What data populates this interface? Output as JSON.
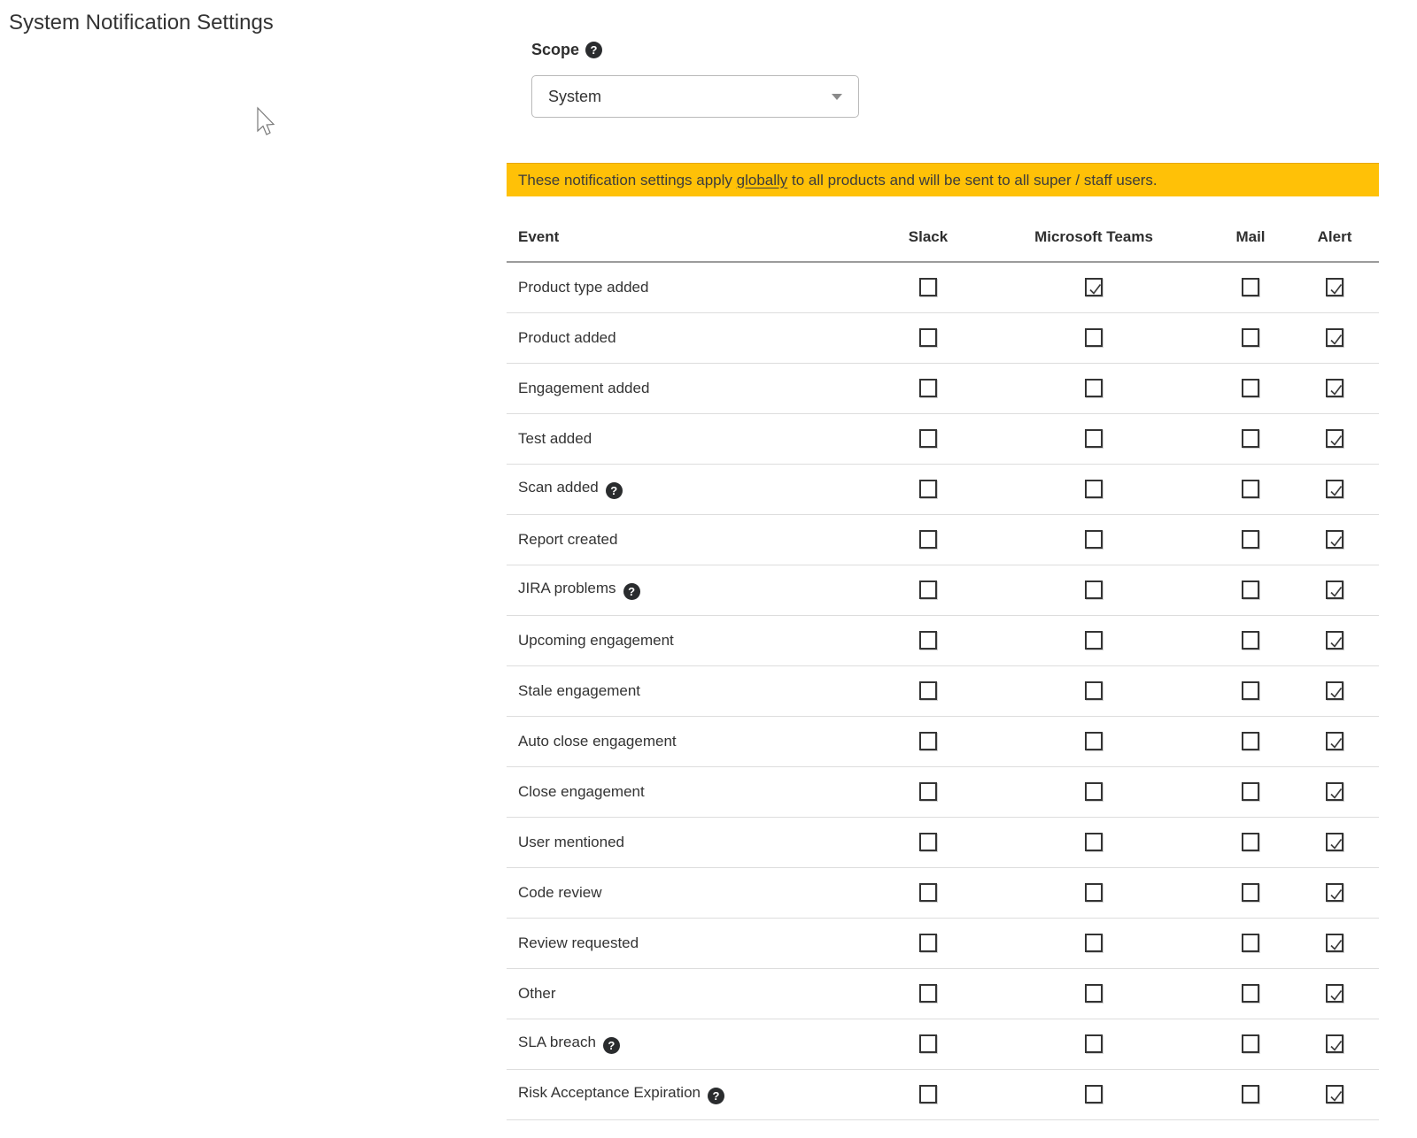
{
  "page": {
    "title": "System Notification Settings"
  },
  "scope": {
    "label": "Scope",
    "help_icon": "question-circle",
    "selected": "System"
  },
  "banner": {
    "text_before": "These notification settings apply ",
    "underlined": "globally",
    "text_after": " to all products and will be sent to all super / staff users.",
    "background_color": "#ffc107"
  },
  "table": {
    "columns": [
      "Event",
      "Slack",
      "Microsoft Teams",
      "Mail",
      "Alert"
    ],
    "rows": [
      {
        "event": "Product type added",
        "help": false,
        "slack": false,
        "msteams": true,
        "mail": false,
        "alert": true
      },
      {
        "event": "Product added",
        "help": false,
        "slack": false,
        "msteams": false,
        "mail": false,
        "alert": true
      },
      {
        "event": "Engagement added",
        "help": false,
        "slack": false,
        "msteams": false,
        "mail": false,
        "alert": true
      },
      {
        "event": "Test added",
        "help": false,
        "slack": false,
        "msteams": false,
        "mail": false,
        "alert": true
      },
      {
        "event": "Scan added",
        "help": true,
        "slack": false,
        "msteams": false,
        "mail": false,
        "alert": true
      },
      {
        "event": "Report created",
        "help": false,
        "slack": false,
        "msteams": false,
        "mail": false,
        "alert": true
      },
      {
        "event": "JIRA problems",
        "help": true,
        "slack": false,
        "msteams": false,
        "mail": false,
        "alert": true
      },
      {
        "event": "Upcoming engagement",
        "help": false,
        "slack": false,
        "msteams": false,
        "mail": false,
        "alert": true
      },
      {
        "event": "Stale engagement",
        "help": false,
        "slack": false,
        "msteams": false,
        "mail": false,
        "alert": true
      },
      {
        "event": "Auto close engagement",
        "help": false,
        "slack": false,
        "msteams": false,
        "mail": false,
        "alert": true
      },
      {
        "event": "Close engagement",
        "help": false,
        "slack": false,
        "msteams": false,
        "mail": false,
        "alert": true
      },
      {
        "event": "User mentioned",
        "help": false,
        "slack": false,
        "msteams": false,
        "mail": false,
        "alert": true
      },
      {
        "event": "Code review",
        "help": false,
        "slack": false,
        "msteams": false,
        "mail": false,
        "alert": true
      },
      {
        "event": "Review requested",
        "help": false,
        "slack": false,
        "msteams": false,
        "mail": false,
        "alert": true
      },
      {
        "event": "Other",
        "help": false,
        "slack": false,
        "msteams": false,
        "mail": false,
        "alert": true
      },
      {
        "event": "SLA breach",
        "help": true,
        "slack": false,
        "msteams": false,
        "mail": false,
        "alert": true
      },
      {
        "event": "Risk Acceptance Expiration",
        "help": true,
        "slack": false,
        "msteams": false,
        "mail": false,
        "alert": true
      }
    ]
  },
  "icons": {
    "help_glyph": "?",
    "checkbox_checked_color": "#3d3d3d"
  }
}
